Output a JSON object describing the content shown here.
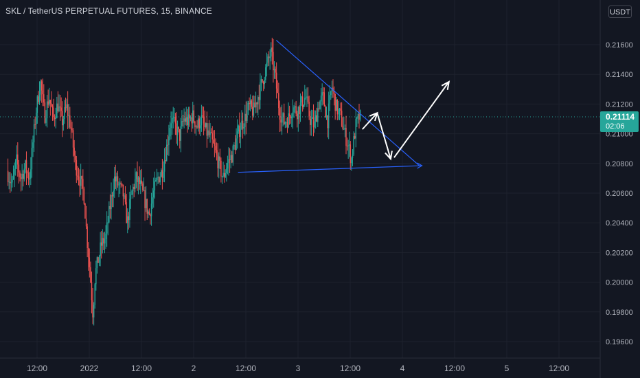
{
  "header": {
    "title": "SKL / TetherUS PERPETUAL FUTURES, 15, BINANCE"
  },
  "currency_badge": "USDT",
  "current_price": {
    "value": "0.21114",
    "countdown": "02:06",
    "color": "#26a69a"
  },
  "colors": {
    "background": "#131722",
    "up": "#26a69a",
    "down": "#ef5350",
    "grid": "#1e222d",
    "axis_text": "#b2b5be",
    "trendline": "#2962ff",
    "arrow": "#ffffff"
  },
  "chart_data": {
    "type": "candlestick",
    "ylim": [
      0.195,
      0.2165
    ],
    "y_ticks": [
      0.216,
      0.214,
      0.212,
      0.21,
      0.208,
      0.206,
      0.204,
      0.202,
      0.2,
      0.198,
      0.196
    ],
    "y_tick_labels": [
      "0.21600",
      "0.21400",
      "0.21200",
      "0.21000",
      "0.20800",
      "0.20600",
      "0.20400",
      "0.20200",
      "0.20000",
      "0.19800",
      "0.19600"
    ],
    "x_ticks": [
      {
        "t": 12,
        "label": "12:00"
      },
      {
        "t": 24,
        "label": "2022"
      },
      {
        "t": 36,
        "label": "12:00"
      },
      {
        "t": 48,
        "label": "2"
      },
      {
        "t": 60,
        "label": "12:00"
      },
      {
        "t": 72,
        "label": "3"
      },
      {
        "t": 84,
        "label": "12:00"
      },
      {
        "t": 96,
        "label": "4"
      },
      {
        "t": 108,
        "label": "12:00"
      },
      {
        "t": 120,
        "label": "5"
      },
      {
        "t": 132,
        "label": "12:00"
      }
    ],
    "x_range_hours": [
      5.3,
      144.0
    ],
    "current_price_line": 0.21114,
    "start_hour": 5.3,
    "bar_hours": 0.25,
    "price_path": [
      [
        5.3,
        0.2075
      ],
      [
        6.5,
        0.2065
      ],
      [
        7.5,
        0.2082
      ],
      [
        8.5,
        0.207
      ],
      [
        9.5,
        0.2078
      ],
      [
        10.5,
        0.207
      ],
      [
        12,
        0.2115
      ],
      [
        13,
        0.2135
      ],
      [
        14,
        0.2112
      ],
      [
        15,
        0.2125
      ],
      [
        16,
        0.211
      ],
      [
        17,
        0.212
      ],
      [
        18,
        0.2108
      ],
      [
        19,
        0.2118
      ],
      [
        20,
        0.2105
      ],
      [
        21,
        0.208
      ],
      [
        22,
        0.207
      ],
      [
        23,
        0.206
      ],
      [
        23.7,
        0.203
      ],
      [
        24.2,
        0.2015
      ],
      [
        24.7,
        0.1995
      ],
      [
        25.1,
        0.1978
      ],
      [
        25.6,
        0.2005
      ],
      [
        26.3,
        0.2015
      ],
      [
        27,
        0.2025
      ],
      [
        28,
        0.203
      ],
      [
        29,
        0.205
      ],
      [
        30,
        0.207
      ],
      [
        31,
        0.2065
      ],
      [
        32,
        0.206
      ],
      [
        33,
        0.204
      ],
      [
        34,
        0.206
      ],
      [
        35,
        0.207
      ],
      [
        36,
        0.2065
      ],
      [
        37,
        0.2055
      ],
      [
        38,
        0.2045
      ],
      [
        39,
        0.206
      ],
      [
        40,
        0.207
      ],
      [
        41,
        0.2075
      ],
      [
        42,
        0.209
      ],
      [
        43,
        0.211
      ],
      [
        44,
        0.2105
      ],
      [
        45,
        0.2098
      ],
      [
        46,
        0.211
      ],
      [
        47,
        0.2108
      ],
      [
        48,
        0.2112
      ],
      [
        49,
        0.2105
      ],
      [
        50,
        0.211
      ],
      [
        51,
        0.2102
      ],
      [
        52,
        0.2098
      ],
      [
        53,
        0.209
      ],
      [
        54,
        0.208
      ],
      [
        55,
        0.207
      ],
      [
        56,
        0.208
      ],
      [
        57,
        0.2085
      ],
      [
        58,
        0.2095
      ],
      [
        59,
        0.2105
      ],
      [
        60,
        0.211
      ],
      [
        61,
        0.2118
      ],
      [
        62,
        0.2115
      ],
      [
        63,
        0.2125
      ],
      [
        64,
        0.2135
      ],
      [
        65,
        0.2145
      ],
      [
        66,
        0.2155
      ],
      [
        67,
        0.2138
      ],
      [
        68,
        0.2115
      ],
      [
        69,
        0.2108
      ],
      [
        70,
        0.211
      ],
      [
        71,
        0.2118
      ],
      [
        72,
        0.2115
      ],
      [
        73,
        0.212
      ],
      [
        74,
        0.2125
      ],
      [
        75,
        0.211
      ],
      [
        76,
        0.2105
      ],
      [
        77,
        0.212
      ],
      [
        78,
        0.2125
      ],
      [
        79,
        0.2108
      ],
      [
        80,
        0.2132
      ],
      [
        81,
        0.2118
      ],
      [
        82,
        0.2112
      ],
      [
        83,
        0.21
      ],
      [
        84,
        0.209
      ],
      [
        84.5,
        0.2082
      ],
      [
        85.5,
        0.2105
      ],
      [
        86.3,
        0.2111
      ]
    ],
    "drawings": [
      {
        "type": "trendline",
        "color": "#2962ff",
        "p1": {
          "t": 67,
          "price": 0.2163
        },
        "p2": {
          "t": 99.9,
          "price": 0.20785
        }
      },
      {
        "type": "trendline",
        "color": "#2962ff",
        "p1": {
          "t": 58.2,
          "price": 0.2074
        },
        "p2": {
          "t": 100.5,
          "price": 0.20785
        }
      },
      {
        "type": "arrow",
        "color": "#ffffff",
        "points": [
          {
            "t": 86.8,
            "price": 0.2103
          },
          {
            "t": 90.2,
            "price": 0.2114
          }
        ]
      },
      {
        "type": "arrow",
        "color": "#ffffff",
        "points": [
          {
            "t": 90.2,
            "price": 0.2114
          },
          {
            "t": 93.3,
            "price": 0.2083
          }
        ]
      },
      {
        "type": "arrow",
        "color": "#ffffff",
        "points": [
          {
            "t": 94.1,
            "price": 0.2084
          },
          {
            "t": 106.7,
            "price": 0.2135
          }
        ]
      }
    ]
  }
}
